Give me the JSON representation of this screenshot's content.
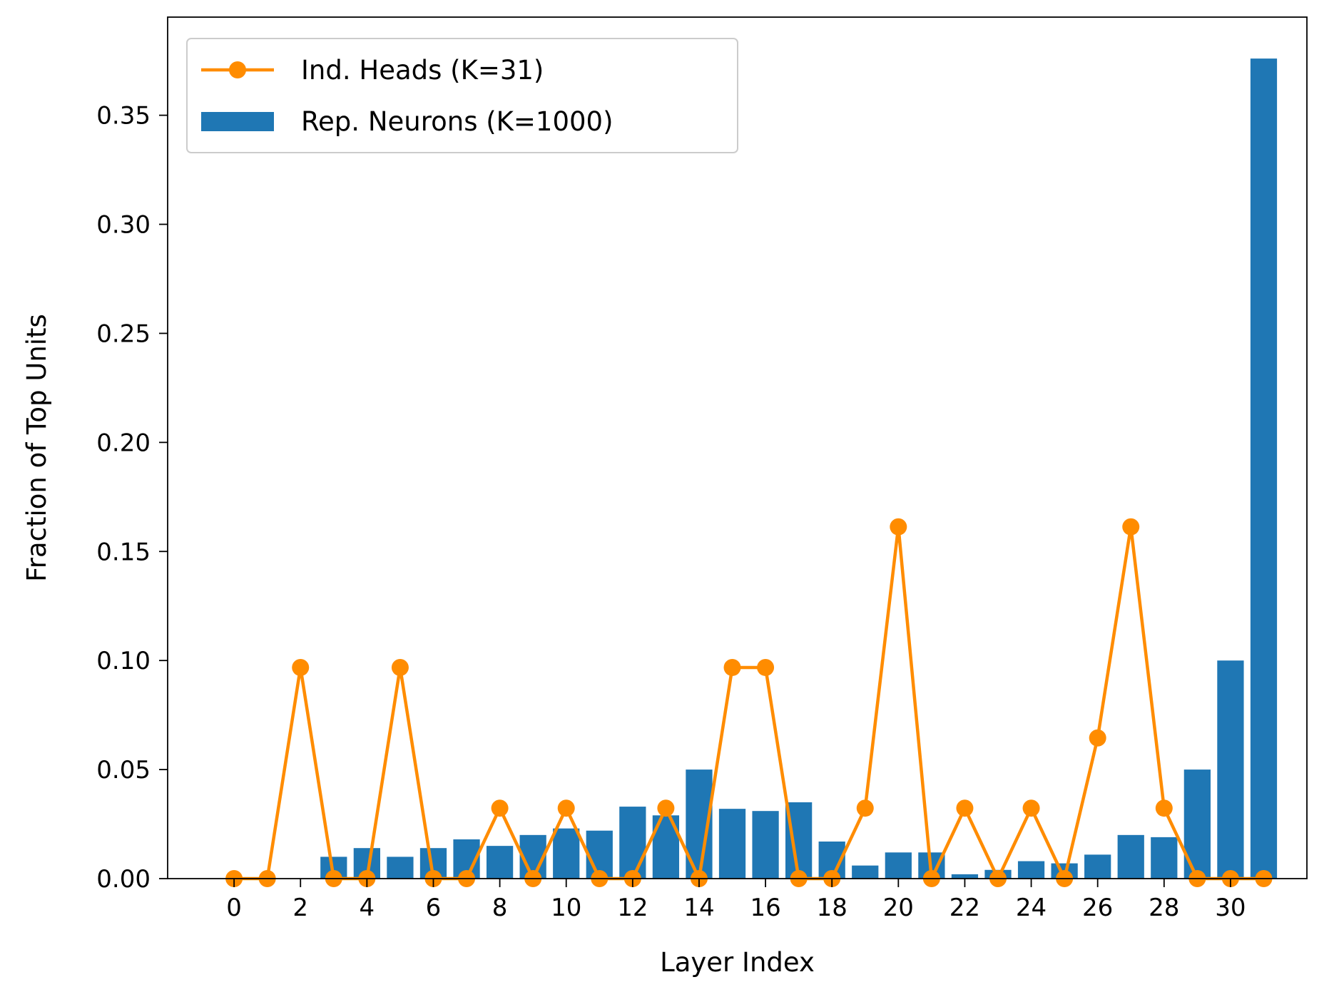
{
  "chart_data": {
    "type": "bar",
    "title": "",
    "xlabel": "Layer Index",
    "ylabel": "Fraction of Top Units",
    "x": [
      0,
      1,
      2,
      3,
      4,
      5,
      6,
      7,
      8,
      9,
      10,
      11,
      12,
      13,
      14,
      15,
      16,
      17,
      18,
      19,
      20,
      21,
      22,
      23,
      24,
      25,
      26,
      27,
      28,
      29,
      30,
      31
    ],
    "xlim": [
      -2,
      32.3
    ],
    "ylim": [
      0,
      0.395
    ],
    "x_ticks": [
      0,
      2,
      4,
      6,
      8,
      10,
      12,
      14,
      16,
      18,
      20,
      22,
      24,
      26,
      28,
      30
    ],
    "x_tick_labels": [
      "0",
      "2",
      "4",
      "6",
      "8",
      "10",
      "12",
      "14",
      "16",
      "18",
      "20",
      "22",
      "24",
      "26",
      "28",
      "30"
    ],
    "y_ticks": [
      0,
      0.05,
      0.1,
      0.15,
      0.2,
      0.25,
      0.3,
      0.35
    ],
    "y_tick_labels": [
      "0.00",
      "0.05",
      "0.10",
      "0.15",
      "0.20",
      "0.25",
      "0.30",
      "0.35"
    ],
    "grid": false,
    "legend_position": "top-left",
    "series": [
      {
        "name": "Ind. Heads (K=31)",
        "type": "line",
        "marker": "circle",
        "color": "#ff8c00",
        "values": [
          0,
          0,
          0.0968,
          0,
          0,
          0.0968,
          0,
          0,
          0.0323,
          0,
          0.0323,
          0,
          0,
          0.0323,
          0,
          0.0968,
          0.0968,
          0,
          0,
          0.0323,
          0.1613,
          0,
          0.0323,
          0,
          0.0323,
          0,
          0.0645,
          0.1613,
          0.0323,
          0,
          0,
          0
        ]
      },
      {
        "name": "Rep. Neurons (K=1000)",
        "type": "bar",
        "color": "#1f77b4",
        "values": [
          0,
          0,
          0,
          0.01,
          0.014,
          0.01,
          0.014,
          0.018,
          0.015,
          0.02,
          0.023,
          0.022,
          0.033,
          0.029,
          0.05,
          0.032,
          0.031,
          0.035,
          0.017,
          0.006,
          0.012,
          0.012,
          0.002,
          0.004,
          0.008,
          0.007,
          0.011,
          0.02,
          0.019,
          0.05,
          0.1,
          0.376
        ]
      }
    ]
  }
}
